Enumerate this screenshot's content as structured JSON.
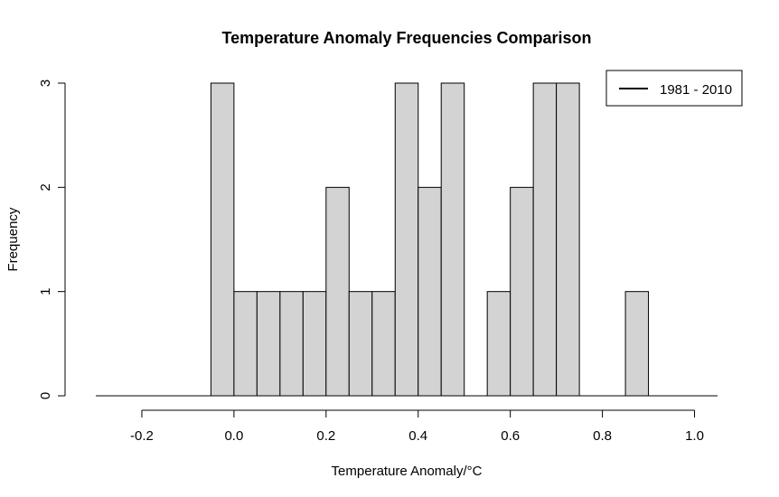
{
  "chart_data": {
    "type": "bar",
    "title": "Temperature Anomaly Frequencies Comparison",
    "xlabel": "Temperature Anomaly/°C",
    "ylabel": "Frequency",
    "xlim": [
      -0.3,
      1.05
    ],
    "ylim": [
      0,
      3
    ],
    "x_ticks": [
      -0.2,
      0.0,
      0.2,
      0.4,
      0.6,
      0.8,
      1.0
    ],
    "x_tick_labels": [
      "-0.2",
      "0.0",
      "0.2",
      "0.4",
      "0.6",
      "0.8",
      "1.0"
    ],
    "y_ticks": [
      0,
      1,
      2,
      3
    ],
    "y_tick_labels": [
      "0",
      "1",
      "2",
      "3"
    ],
    "baseline_range": [
      -0.3,
      1.05
    ],
    "bins": [
      {
        "start": -0.05,
        "end": 0.0,
        "count": 3
      },
      {
        "start": 0.0,
        "end": 0.05,
        "count": 1
      },
      {
        "start": 0.05,
        "end": 0.1,
        "count": 1
      },
      {
        "start": 0.1,
        "end": 0.15,
        "count": 1
      },
      {
        "start": 0.15,
        "end": 0.2,
        "count": 1
      },
      {
        "start": 0.2,
        "end": 0.25,
        "count": 2
      },
      {
        "start": 0.25,
        "end": 0.3,
        "count": 1
      },
      {
        "start": 0.3,
        "end": 0.35,
        "count": 1
      },
      {
        "start": 0.35,
        "end": 0.4,
        "count": 3
      },
      {
        "start": 0.4,
        "end": 0.45,
        "count": 2
      },
      {
        "start": 0.45,
        "end": 0.5,
        "count": 3
      },
      {
        "start": 0.5,
        "end": 0.55,
        "count": 0
      },
      {
        "start": 0.55,
        "end": 0.6,
        "count": 1
      },
      {
        "start": 0.6,
        "end": 0.65,
        "count": 2
      },
      {
        "start": 0.65,
        "end": 0.7,
        "count": 3
      },
      {
        "start": 0.7,
        "end": 0.75,
        "count": 3
      },
      {
        "start": 0.75,
        "end": 0.8,
        "count": 0
      },
      {
        "start": 0.8,
        "end": 0.85,
        "count": 0
      },
      {
        "start": 0.85,
        "end": 0.9,
        "count": 1
      }
    ],
    "legend": {
      "position": "top-right",
      "entries": [
        {
          "label": "1981 - 2010",
          "symbol": "line",
          "color": "#000000"
        }
      ]
    },
    "grid": false,
    "bar_fill": "#d3d3d3",
    "bar_stroke": "#000000"
  }
}
